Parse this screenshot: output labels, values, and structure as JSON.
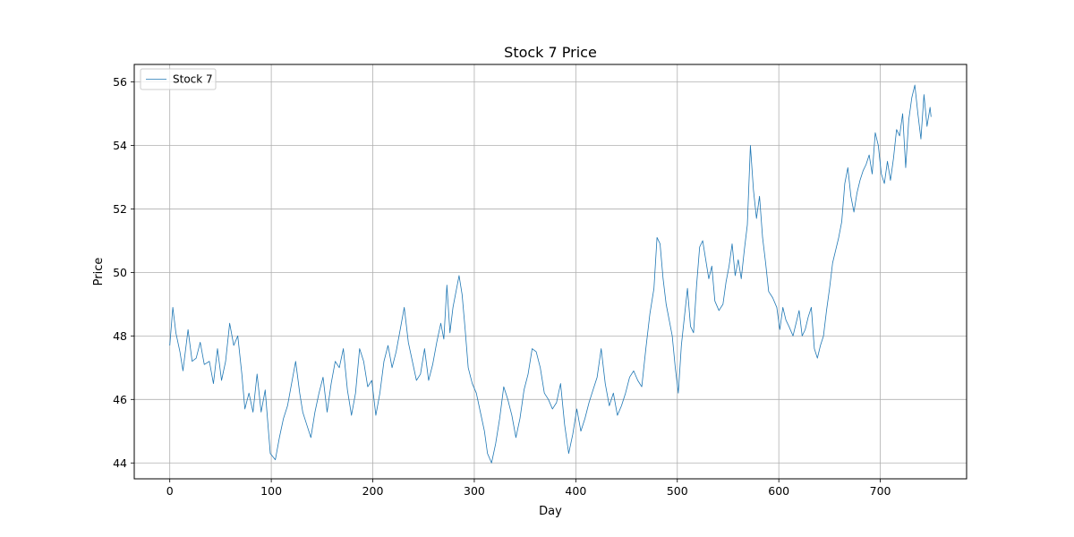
{
  "chart_data": {
    "type": "line",
    "title": "Stock 7 Price",
    "xlabel": "Day",
    "ylabel": "Price",
    "xlim": [
      -35,
      785
    ],
    "ylim": [
      43.5,
      56.55
    ],
    "xticks": [
      0,
      100,
      200,
      300,
      400,
      500,
      600,
      700
    ],
    "yticks": [
      44,
      46,
      48,
      50,
      52,
      54,
      56
    ],
    "grid": true,
    "legend_position": "top-left",
    "series": [
      {
        "name": "Stock 7",
        "color": "#1f77b4",
        "points": [
          [
            0,
            47.7
          ],
          [
            3,
            48.9
          ],
          [
            6,
            48.1
          ],
          [
            10,
            47.5
          ],
          [
            13,
            46.9
          ],
          [
            18,
            48.2
          ],
          [
            22,
            47.2
          ],
          [
            26,
            47.3
          ],
          [
            30,
            47.8
          ],
          [
            34,
            47.1
          ],
          [
            39,
            47.2
          ],
          [
            43,
            46.5
          ],
          [
            47,
            47.6
          ],
          [
            51,
            46.6
          ],
          [
            55,
            47.2
          ],
          [
            59,
            48.4
          ],
          [
            63,
            47.7
          ],
          [
            67,
            48.0
          ],
          [
            71,
            46.8
          ],
          [
            74,
            45.7
          ],
          [
            78,
            46.2
          ],
          [
            82,
            45.6
          ],
          [
            86,
            46.8
          ],
          [
            90,
            45.6
          ],
          [
            94,
            46.3
          ],
          [
            99,
            44.3
          ],
          [
            104,
            44.1
          ],
          [
            108,
            44.8
          ],
          [
            112,
            45.4
          ],
          [
            116,
            45.8
          ],
          [
            120,
            46.5
          ],
          [
            124,
            47.2
          ],
          [
            128,
            46.2
          ],
          [
            131,
            45.6
          ],
          [
            135,
            45.2
          ],
          [
            139,
            44.8
          ],
          [
            143,
            45.6
          ],
          [
            147,
            46.2
          ],
          [
            151,
            46.7
          ],
          [
            155,
            45.6
          ],
          [
            159,
            46.5
          ],
          [
            163,
            47.2
          ],
          [
            167,
            47.0
          ],
          [
            171,
            47.6
          ],
          [
            175,
            46.3
          ],
          [
            179,
            45.5
          ],
          [
            183,
            46.2
          ],
          [
            187,
            47.6
          ],
          [
            191,
            47.2
          ],
          [
            195,
            46.4
          ],
          [
            199,
            46.6
          ],
          [
            203,
            45.5
          ],
          [
            207,
            46.2
          ],
          [
            211,
            47.2
          ],
          [
            215,
            47.7
          ],
          [
            219,
            47.0
          ],
          [
            223,
            47.5
          ],
          [
            227,
            48.2
          ],
          [
            231,
            48.9
          ],
          [
            235,
            47.8
          ],
          [
            239,
            47.2
          ],
          [
            243,
            46.6
          ],
          [
            247,
            46.8
          ],
          [
            251,
            47.6
          ],
          [
            255,
            46.6
          ],
          [
            259,
            47.1
          ],
          [
            263,
            47.8
          ],
          [
            267,
            48.4
          ],
          [
            270,
            47.9
          ],
          [
            273,
            49.6
          ],
          [
            276,
            48.1
          ],
          [
            279,
            48.9
          ],
          [
            282,
            49.4
          ],
          [
            285,
            49.9
          ],
          [
            288,
            49.3
          ],
          [
            291,
            48.2
          ],
          [
            294,
            47.0
          ],
          [
            298,
            46.5
          ],
          [
            302,
            46.2
          ],
          [
            306,
            45.6
          ],
          [
            310,
            45.0
          ],
          [
            313,
            44.3
          ],
          [
            317,
            44.0
          ],
          [
            321,
            44.6
          ],
          [
            325,
            45.4
          ],
          [
            329,
            46.4
          ],
          [
            333,
            46.0
          ],
          [
            337,
            45.5
          ],
          [
            341,
            44.8
          ],
          [
            345,
            45.4
          ],
          [
            349,
            46.3
          ],
          [
            353,
            46.8
          ],
          [
            357,
            47.6
          ],
          [
            361,
            47.5
          ],
          [
            365,
            47.0
          ],
          [
            369,
            46.2
          ],
          [
            373,
            46.0
          ],
          [
            377,
            45.7
          ],
          [
            381,
            45.9
          ],
          [
            385,
            46.5
          ],
          [
            389,
            45.2
          ],
          [
            393,
            44.3
          ],
          [
            397,
            44.9
          ],
          [
            401,
            45.7
          ],
          [
            405,
            45.0
          ],
          [
            409,
            45.4
          ],
          [
            413,
            45.9
          ],
          [
            417,
            46.3
          ],
          [
            421,
            46.7
          ],
          [
            425,
            47.6
          ],
          [
            429,
            46.5
          ],
          [
            433,
            45.8
          ],
          [
            437,
            46.2
          ],
          [
            441,
            45.5
          ],
          [
            445,
            45.8
          ],
          [
            449,
            46.2
          ],
          [
            453,
            46.7
          ],
          [
            457,
            46.9
          ],
          [
            461,
            46.6
          ],
          [
            465,
            46.4
          ],
          [
            469,
            47.6
          ],
          [
            473,
            48.7
          ],
          [
            477,
            49.5
          ],
          [
            480,
            51.1
          ],
          [
            483,
            50.9
          ],
          [
            486,
            49.8
          ],
          [
            489,
            49.0
          ],
          [
            492,
            48.5
          ],
          [
            495,
            48.0
          ],
          [
            498,
            47.0
          ],
          [
            501,
            46.2
          ],
          [
            504,
            47.7
          ],
          [
            507,
            48.6
          ],
          [
            510,
            49.5
          ],
          [
            513,
            48.3
          ],
          [
            516,
            48.1
          ],
          [
            519,
            49.6
          ],
          [
            522,
            50.8
          ],
          [
            525,
            51.0
          ],
          [
            528,
            50.4
          ],
          [
            531,
            49.8
          ],
          [
            534,
            50.2
          ],
          [
            537,
            49.1
          ],
          [
            541,
            48.8
          ],
          [
            545,
            49.0
          ],
          [
            548,
            49.7
          ],
          [
            551,
            50.2
          ],
          [
            554,
            50.9
          ],
          [
            557,
            49.9
          ],
          [
            560,
            50.4
          ],
          [
            563,
            49.8
          ],
          [
            566,
            50.7
          ],
          [
            569,
            51.5
          ],
          [
            572,
            54.0
          ],
          [
            575,
            52.6
          ],
          [
            578,
            51.7
          ],
          [
            581,
            52.4
          ],
          [
            584,
            51.1
          ],
          [
            587,
            50.3
          ],
          [
            590,
            49.4
          ],
          [
            594,
            49.2
          ],
          [
            598,
            48.9
          ],
          [
            601,
            48.2
          ],
          [
            604,
            48.9
          ],
          [
            607,
            48.5
          ],
          [
            610,
            48.3
          ],
          [
            614,
            48.0
          ],
          [
            617,
            48.4
          ],
          [
            620,
            48.8
          ],
          [
            623,
            48.0
          ],
          [
            626,
            48.2
          ],
          [
            629,
            48.6
          ],
          [
            632,
            48.9
          ],
          [
            635,
            47.6
          ],
          [
            638,
            47.3
          ],
          [
            641,
            47.7
          ],
          [
            644,
            48.0
          ],
          [
            647,
            48.8
          ],
          [
            650,
            49.5
          ],
          [
            653,
            50.3
          ],
          [
            656,
            50.7
          ],
          [
            659,
            51.1
          ],
          [
            662,
            51.6
          ],
          [
            665,
            52.8
          ],
          [
            668,
            53.3
          ],
          [
            671,
            52.4
          ],
          [
            674,
            51.9
          ],
          [
            677,
            52.5
          ],
          [
            680,
            52.9
          ],
          [
            683,
            53.2
          ],
          [
            686,
            53.4
          ],
          [
            689,
            53.7
          ],
          [
            692,
            53.1
          ],
          [
            695,
            54.4
          ],
          [
            698,
            54.0
          ],
          [
            701,
            53.1
          ],
          [
            704,
            52.8
          ],
          [
            707,
            53.5
          ],
          [
            710,
            52.9
          ],
          [
            713,
            53.6
          ],
          [
            716,
            54.5
          ],
          [
            719,
            54.3
          ],
          [
            722,
            55.0
          ],
          [
            725,
            53.3
          ],
          [
            728,
            54.8
          ],
          [
            731,
            55.5
          ],
          [
            734,
            55.9
          ],
          [
            737,
            55.0
          ],
          [
            740,
            54.2
          ],
          [
            743,
            55.6
          ],
          [
            746,
            54.6
          ],
          [
            749,
            55.2
          ],
          [
            750,
            54.9
          ]
        ]
      }
    ]
  }
}
